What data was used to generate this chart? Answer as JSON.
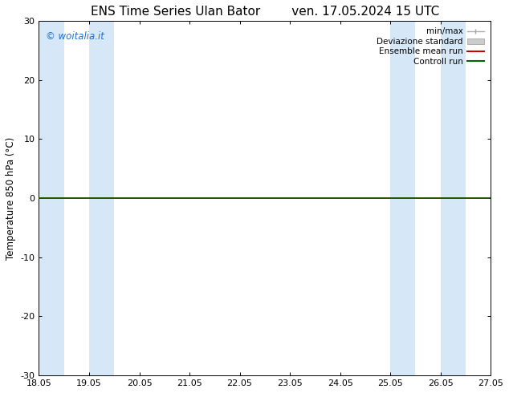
{
  "title_left": "ENS Time Series Ulan Bator",
  "title_right": "ven. 17.05.2024 15 UTC",
  "ylabel": "Temperature 850 hPa (°C)",
  "xlabel": "",
  "ylim": [
    -30,
    30
  ],
  "yticks": [
    -30,
    -20,
    -10,
    0,
    10,
    20,
    30
  ],
  "xlim_start": 18.05,
  "xlim_end": 27.05,
  "xticks": [
    18.05,
    19.05,
    20.05,
    21.05,
    22.05,
    23.05,
    24.05,
    25.05,
    26.05,
    27.05
  ],
  "xticklabels": [
    "18.05",
    "19.05",
    "20.05",
    "21.05",
    "22.05",
    "23.05",
    "24.05",
    "25.05",
    "26.05",
    "27.05"
  ],
  "background_color": "#ffffff",
  "plot_bg_color": "#ffffff",
  "shaded_regions": [
    [
      18.05,
      18.55
    ],
    [
      19.05,
      19.55
    ],
    [
      25.05,
      25.55
    ],
    [
      26.05,
      26.55
    ]
  ],
  "shaded_color": "#d6e8f8",
  "control_run_color": "#006400",
  "ensemble_mean_color": "#cc0000",
  "watermark_text": "© woitalia.it",
  "watermark_color": "#1e6fcc",
  "legend_labels": [
    "min/max",
    "Deviazione standard",
    "Ensemble mean run",
    "Controll run"
  ],
  "title_fontsize": 11,
  "axis_fontsize": 8.5,
  "tick_fontsize": 8
}
